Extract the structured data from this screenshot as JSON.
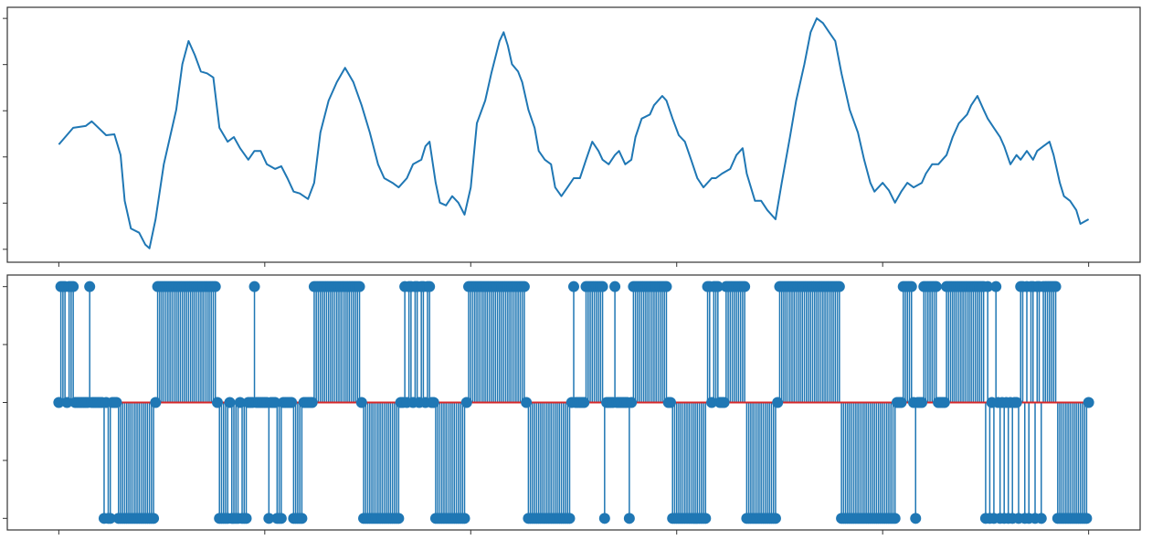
{
  "chart_data": [
    {
      "type": "line",
      "color": "#1f77b4",
      "x": [
        0,
        7,
        13,
        16,
        23,
        27,
        30,
        32,
        35,
        39,
        42,
        44,
        47,
        51,
        54,
        57,
        60,
        63,
        66,
        69,
        72,
        75,
        78,
        82,
        85,
        88,
        92,
        95,
        98,
        101,
        105,
        108,
        111,
        114,
        117,
        121,
        124,
        127,
        131,
        135,
        139,
        143,
        147,
        151,
        155,
        158,
        162,
        165,
        169,
        172,
        176,
        178,
        180,
        183,
        185,
        188,
        191,
        194,
        197,
        200,
        203,
        207,
        210,
        214,
        216,
        218,
        220,
        223,
        225,
        228,
        231,
        233,
        236,
        239,
        241,
        244,
        247,
        250,
        253,
        256,
        259,
        262,
        264,
        267,
        270,
        272,
        275,
        278,
        280,
        283,
        287,
        289,
        293,
        295,
        298,
        301,
        304,
        307,
        310,
        313,
        317,
        319,
        322,
        326,
        329,
        332,
        334,
        338,
        341,
        344,
        348,
        351,
        355,
        358,
        362,
        365,
        368,
        371,
        374,
        377,
        380,
        384,
        388,
        391,
        394,
        396,
        400,
        403,
        406,
        409,
        412,
        415,
        419,
        421,
        424,
        427,
        431,
        434,
        437,
        441,
        443,
        446,
        449,
        451,
        454,
        457,
        459,
        462,
        465,
        467,
        470,
        473,
        475,
        478,
        481,
        483,
        486,
        488,
        491,
        494,
        496,
        500
      ],
      "values": [
        0.27,
        0.63,
        0.67,
        0.77,
        0.47,
        0.49,
        0.04,
        -0.95,
        -1.55,
        -1.64,
        -1.9,
        -1.98,
        -1.35,
        -0.16,
        0.43,
        1.02,
        2.01,
        2.51,
        2.21,
        1.85,
        1.81,
        1.72,
        0.63,
        0.33,
        0.43,
        0.19,
        -0.06,
        0.13,
        0.13,
        -0.16,
        -0.26,
        -0.2,
        -0.46,
        -0.75,
        -0.79,
        -0.91,
        -0.56,
        0.53,
        1.22,
        1.62,
        1.93,
        1.62,
        1.12,
        0.53,
        -0.16,
        -0.46,
        -0.56,
        -0.66,
        -0.46,
        -0.16,
        -0.06,
        0.23,
        0.33,
        -0.56,
        -0.99,
        -1.05,
        -0.85,
        -0.99,
        -1.25,
        -0.66,
        0.73,
        1.22,
        1.81,
        2.51,
        2.7,
        2.41,
        2.01,
        1.85,
        1.62,
        1.02,
        0.63,
        0.13,
        -0.06,
        -0.16,
        -0.66,
        -0.85,
        -0.66,
        -0.46,
        -0.46,
        -0.06,
        0.33,
        0.13,
        -0.06,
        -0.16,
        0.04,
        0.13,
        -0.16,
        -0.06,
        0.43,
        0.83,
        0.92,
        1.12,
        1.32,
        1.22,
        0.83,
        0.47,
        0.33,
        -0.06,
        -0.46,
        -0.66,
        -0.46,
        -0.46,
        -0.36,
        -0.26,
        0.04,
        0.19,
        -0.36,
        -0.95,
        -0.95,
        -1.15,
        -1.35,
        -0.56,
        0.43,
        1.22,
        2.01,
        2.7,
        3.0,
        2.9,
        2.7,
        2.51,
        1.81,
        1.02,
        0.53,
        -0.06,
        -0.56,
        -0.75,
        -0.56,
        -0.72,
        -0.99,
        -0.75,
        -0.56,
        -0.66,
        -0.56,
        -0.36,
        -0.16,
        -0.16,
        0.04,
        0.43,
        0.73,
        0.92,
        1.12,
        1.32,
        1.02,
        0.83,
        0.63,
        0.43,
        0.23,
        -0.16,
        0.04,
        -0.06,
        0.13,
        -0.06,
        0.13,
        0.23,
        0.33,
        0.04,
        -0.56,
        -0.85,
        -0.95,
        -1.15,
        -1.45,
        -1.35
      ],
      "xlim": [
        -25,
        525
      ],
      "xticks": [
        0,
        100,
        200,
        300,
        400,
        500
      ],
      "ylim": [
        -2.28,
        3.24
      ],
      "yticks": [
        -2,
        -1,
        0,
        1,
        2,
        3
      ]
    },
    {
      "type": "stem",
      "color": "#1f77b4",
      "baseline_color": "#d62728",
      "values": [
        0,
        1,
        1,
        1,
        0,
        1,
        1,
        1,
        0,
        0,
        0,
        0,
        0,
        0,
        0,
        1,
        0,
        0,
        0,
        0,
        0,
        0,
        -1,
        0,
        -1,
        -1,
        0,
        0,
        0,
        -1,
        -1,
        -1,
        -1,
        -1,
        -1,
        -1,
        -1,
        -1,
        -1,
        -1,
        -1,
        -1,
        -1,
        -1,
        -1,
        -1,
        -1,
        0,
        1,
        1,
        1,
        1,
        1,
        1,
        1,
        1,
        1,
        1,
        1,
        1,
        1,
        1,
        1,
        1,
        1,
        1,
        1,
        1,
        1,
        1,
        1,
        1,
        1,
        1,
        1,
        1,
        1,
        0,
        -1,
        -1,
        -1,
        -1,
        -1,
        0,
        -1,
        -1,
        -1,
        -1,
        0,
        -1,
        -1,
        -1,
        0,
        0,
        0,
        1,
        0,
        0,
        0,
        0,
        0,
        0,
        -1,
        0,
        0,
        0,
        -1,
        -1,
        -1,
        0,
        0,
        0,
        0,
        0,
        -1,
        -1,
        -1,
        -1,
        -1,
        0,
        0,
        0,
        0,
        0,
        1,
        1,
        1,
        1,
        1,
        1,
        1,
        1,
        1,
        1,
        1,
        1,
        1,
        1,
        1,
        1,
        1,
        1,
        1,
        1,
        1,
        1,
        1,
        0,
        -1,
        -1,
        -1,
        -1,
        -1,
        -1,
        -1,
        -1,
        -1,
        -1,
        -1,
        -1,
        -1,
        -1,
        -1,
        -1,
        -1,
        -1,
        0,
        0,
        1,
        0,
        1,
        1,
        0,
        1,
        1,
        0,
        1,
        1,
        0,
        1,
        1,
        0,
        0,
        -1,
        -1,
        -1,
        -1,
        -1,
        -1,
        -1,
        -1,
        -1,
        -1,
        -1,
        -1,
        -1,
        -1,
        -1,
        0,
        1,
        1,
        1,
        1,
        1,
        1,
        1,
        1,
        1,
        1,
        1,
        1,
        1,
        1,
        1,
        1,
        1,
        1,
        1,
        1,
        1,
        1,
        1,
        1,
        1,
        1,
        1,
        1,
        0,
        -1,
        -1,
        -1,
        -1,
        -1,
        -1,
        -1,
        -1,
        -1,
        -1,
        -1,
        -1,
        -1,
        -1,
        -1,
        -1,
        -1,
        -1,
        -1,
        -1,
        -1,
        0,
        1,
        0,
        0,
        0,
        0,
        0,
        1,
        1,
        1,
        1,
        1,
        1,
        1,
        1,
        1,
        -1,
        0,
        0,
        0,
        0,
        1,
        0,
        0,
        0,
        0,
        0,
        0,
        -1,
        0,
        1,
        1,
        1,
        1,
        1,
        1,
        1,
        1,
        1,
        1,
        1,
        1,
        1,
        1,
        1,
        1,
        1,
        0,
        0,
        -1,
        -1,
        -1,
        -1,
        -1,
        -1,
        -1,
        -1,
        -1,
        -1,
        -1,
        -1,
        -1,
        -1,
        -1,
        -1,
        -1,
        1,
        1,
        0,
        1,
        1,
        1,
        0,
        0,
        0,
        1,
        1,
        1,
        1,
        1,
        1,
        1,
        1,
        1,
        1,
        -1,
        -1,
        -1,
        -1,
        -1,
        -1,
        -1,
        -1,
        -1,
        -1,
        -1,
        -1,
        -1,
        -1,
        -1,
        0,
        1,
        1,
        1,
        1,
        1,
        1,
        1,
        1,
        1,
        1,
        1,
        1,
        1,
        1,
        1,
        1,
        1,
        1,
        1,
        1,
        1,
        1,
        1,
        1,
        1,
        1,
        1,
        1,
        1,
        1,
        -1,
        -1,
        -1,
        -1,
        -1,
        -1,
        -1,
        -1,
        -1,
        -1,
        -1,
        -1,
        -1,
        -1,
        -1,
        -1,
        -1,
        -1,
        -1,
        -1,
        -1,
        -1,
        -1,
        -1,
        -1,
        -1,
        -1,
        0,
        0,
        0,
        1,
        1,
        1,
        1,
        1,
        0,
        -1,
        0,
        0,
        0,
        1,
        1,
        1,
        1,
        1,
        1,
        1,
        0,
        0,
        0,
        0,
        1,
        1,
        1,
        1,
        1,
        1,
        1,
        1,
        1,
        1,
        1,
        1,
        1,
        1,
        1,
        1,
        1,
        1,
        1,
        -1,
        1,
        -1,
        0,
        -1,
        1,
        0,
        -1,
        0,
        -1,
        0,
        -1,
        0,
        -1,
        0,
        0,
        -1,
        1,
        1,
        -1,
        1,
        -1,
        1,
        1,
        -1,
        1,
        1,
        -1,
        1,
        1,
        1,
        1,
        1,
        1,
        1,
        -1,
        -1,
        -1,
        -1,
        -1,
        -1,
        -1,
        -1,
        -1,
        -1,
        -1,
        -1,
        -1,
        -1,
        -1,
        0
      ],
      "xlim": [
        -25,
        525
      ],
      "xticks": [
        0,
        100,
        200,
        300,
        400,
        500
      ],
      "ylim": [
        -1.1,
        1.1
      ],
      "yticks": [
        -1,
        -0.5,
        0,
        0.5,
        1
      ]
    }
  ]
}
